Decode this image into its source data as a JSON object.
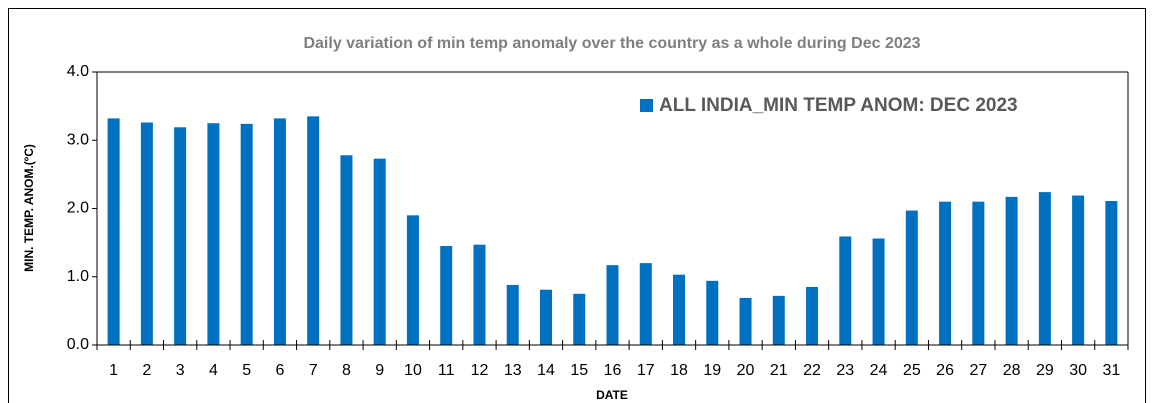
{
  "chart_data": {
    "type": "bar",
    "title": "Daily variation of min temp anomaly over the country as a whole during Dec 2023",
    "x_label": "DATE",
    "y_label": "MIN. TEMP. ANOM.(ºC)",
    "categories": [
      "1",
      "2",
      "3",
      "4",
      "5",
      "6",
      "7",
      "8",
      "9",
      "10",
      "11",
      "12",
      "13",
      "14",
      "15",
      "16",
      "17",
      "18",
      "19",
      "20",
      "21",
      "22",
      "23",
      "24",
      "25",
      "26",
      "27",
      "28",
      "29",
      "30",
      "31"
    ],
    "series": [
      {
        "name": "ALL INDIA_MIN TEMP ANOM: DEC 2023",
        "color": "#0070c0",
        "values": [
          3.32,
          3.26,
          3.19,
          3.25,
          3.24,
          3.32,
          3.35,
          2.78,
          2.73,
          1.9,
          1.45,
          1.47,
          0.88,
          0.81,
          0.75,
          1.17,
          1.2,
          1.03,
          0.94,
          0.69,
          0.72,
          0.85,
          1.59,
          1.56,
          1.97,
          2.1,
          2.1,
          2.17,
          2.24,
          2.19,
          2.11
        ]
      }
    ],
    "ylim": [
      0,
      4
    ],
    "yticks": [
      {
        "value": 0,
        "label": "0.0"
      },
      {
        "value": 1,
        "label": "1.0"
      },
      {
        "value": 2,
        "label": "2.0"
      },
      {
        "value": 3,
        "label": "3.0"
      },
      {
        "value": 4,
        "label": "4.0"
      }
    ],
    "legend": "upper right"
  }
}
